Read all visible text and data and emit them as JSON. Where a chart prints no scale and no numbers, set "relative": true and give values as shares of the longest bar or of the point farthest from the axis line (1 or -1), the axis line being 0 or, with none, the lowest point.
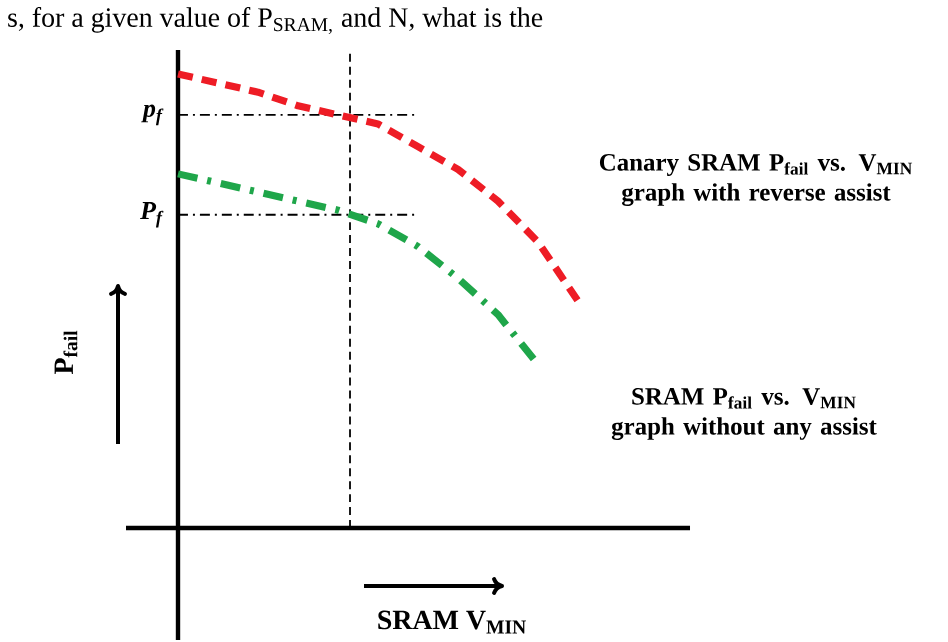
{
  "chart_data": {
    "type": "line",
    "relative": true,
    "xlabel": "SRAM V$_{MIN}$",
    "ylabel": "P$_{fail}$",
    "categories": [
      null,
      null,
      null,
      null,
      null,
      null,
      null,
      null,
      null,
      null,
      null
    ],
    "series": [
      {
        "name": "Canary SRAM P$_{fail}$ vs. V$_{MIN}$ graph with reverse assist",
        "color": "#ee1c25",
        "line_style": "dashed",
        "values": [
          1.0,
          0.98,
          0.96,
          0.93,
          0.91,
          0.89,
          0.84,
          0.79,
          0.72,
          0.63,
          0.5
        ]
      },
      {
        "name": "SRAM P$_{fail}$ vs. V$_{MIN}$ graph without any assist",
        "color": "#1fa64a",
        "line_style": "dashdot",
        "values": [
          0.78,
          0.76,
          0.74,
          0.72,
          0.7,
          0.67,
          0.62,
          0.55,
          0.47,
          0.36,
          null
        ]
      }
    ],
    "ref_lines": [
      {
        "axis": "y",
        "value": 0.91,
        "label": "p$_{f}$",
        "line_style": "dashdot",
        "color": "#000000"
      },
      {
        "axis": "y",
        "value": 0.69,
        "label": "P$_{f}$",
        "line_style": "dashdot",
        "color": "#000000"
      }
    ],
    "annotations": [
      "s, for a given value of P$_{SRAM,}$ and N, what is the"
    ]
  }
}
